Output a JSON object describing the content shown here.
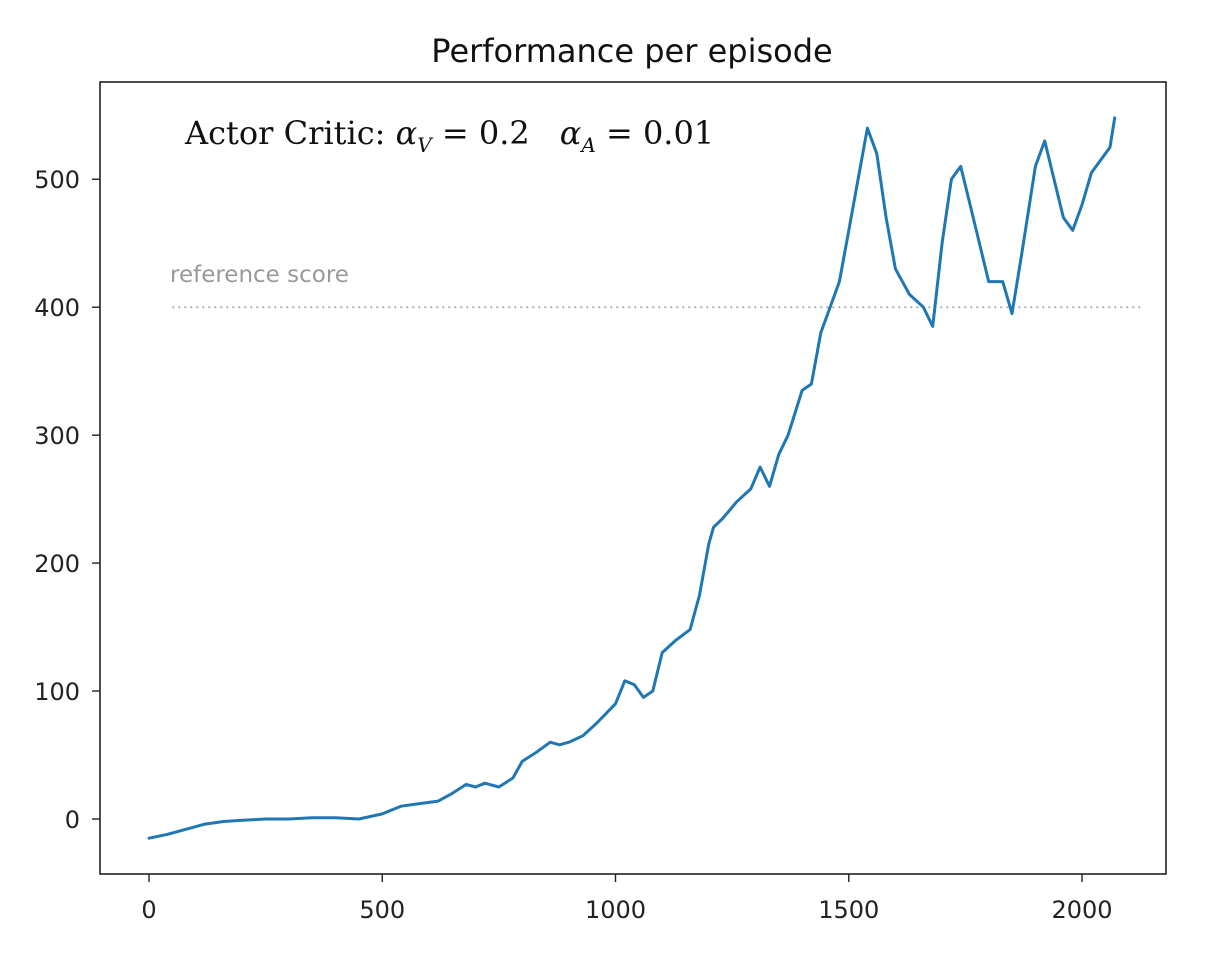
{
  "chart_data": {
    "type": "line",
    "title": "Performance per episode",
    "annotation": "Actor Critic: αV = 0.2    αA = 0.01",
    "annotation_parts": {
      "prefix": "Actor Critic: ",
      "alpha_v_sub": "V",
      "alpha_v_value": " = 0.2",
      "alpha_a_sub": "A",
      "alpha_a_value": " = 0.01"
    },
    "xlabel": "",
    "ylabel": "",
    "xlim": [
      -105,
      2180
    ],
    "ylim": [
      -43,
      576
    ],
    "xticks": [
      0,
      500,
      1000,
      1500,
      2000
    ],
    "xtick_labels": [
      "0",
      "500",
      "1000",
      "1500",
      "2000"
    ],
    "yticks": [
      0,
      100,
      200,
      300,
      400,
      500
    ],
    "ytick_labels": [
      "0",
      "100",
      "200",
      "300",
      "400",
      "500"
    ],
    "grid": false,
    "reference_line": {
      "label": "reference score",
      "y": 400,
      "x_range": [
        50,
        2130
      ],
      "style": "dotted",
      "color": "#b0b0b0"
    },
    "series": [
      {
        "color": "#1f77b4",
        "x": [
          0,
          40,
          80,
          120,
          160,
          200,
          250,
          300,
          350,
          400,
          450,
          500,
          540,
          580,
          620,
          650,
          680,
          700,
          720,
          750,
          780,
          800,
          830,
          860,
          880,
          900,
          930,
          960,
          1000,
          1020,
          1040,
          1060,
          1080,
          1100,
          1130,
          1160,
          1180,
          1200,
          1210,
          1230,
          1260,
          1290,
          1310,
          1330,
          1350,
          1370,
          1400,
          1420,
          1440,
          1460,
          1480,
          1500,
          1520,
          1540,
          1560,
          1580,
          1600,
          1630,
          1660,
          1680,
          1700,
          1720,
          1740,
          1760,
          1780,
          1800,
          1830,
          1850,
          1870,
          1900,
          1920,
          1940,
          1960,
          1980,
          2000,
          2020,
          2040,
          2060,
          2070
        ],
        "y": [
          -15,
          -12,
          -8,
          -4,
          -2,
          -1,
          0,
          0,
          1,
          1,
          0,
          4,
          10,
          12,
          14,
          20,
          27,
          25,
          28,
          25,
          32,
          45,
          52,
          60,
          58,
          60,
          65,
          75,
          90,
          108,
          105,
          95,
          100,
          130,
          140,
          148,
          175,
          215,
          228,
          235,
          248,
          258,
          275,
          260,
          285,
          300,
          335,
          340,
          380,
          400,
          420,
          460,
          500,
          540,
          520,
          470,
          430,
          410,
          400,
          385,
          450,
          500,
          510,
          480,
          450,
          420,
          420,
          395,
          440,
          510,
          530,
          500,
          470,
          460,
          480,
          505,
          515,
          525,
          548
        ]
      }
    ]
  }
}
